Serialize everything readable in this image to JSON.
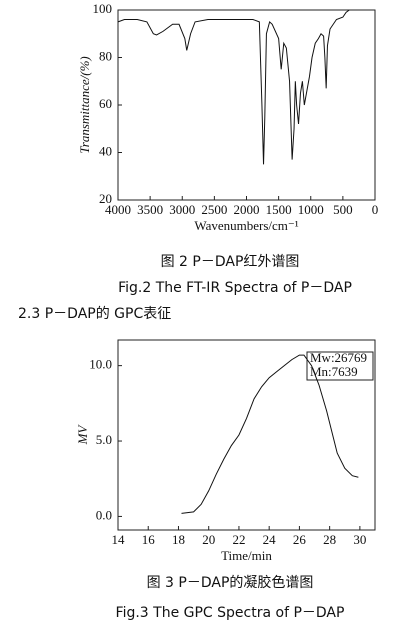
{
  "chart_data": [
    {
      "type": "line",
      "y_label": "Transmittance/(%)",
      "x_label": "Wavenumbers/cm⁻¹",
      "color": "#111111",
      "x": [
        4000,
        3900,
        3700,
        3550,
        3450,
        3400,
        3300,
        3150,
        3050,
        2960,
        2930,
        2870,
        2800,
        2600,
        2200,
        1900,
        1800,
        1760,
        1735,
        1715,
        1690,
        1640,
        1600,
        1500,
        1460,
        1420,
        1380,
        1330,
        1290,
        1260,
        1240,
        1220,
        1190,
        1160,
        1130,
        1100,
        1060,
        1020,
        980,
        930,
        880,
        840,
        800,
        780,
        760,
        740,
        700,
        600,
        500,
        450,
        400
      ],
      "values": [
        95,
        96,
        96,
        95,
        90,
        89.5,
        91,
        94,
        94,
        88,
        83,
        90,
        95,
        96,
        96,
        96,
        95,
        60,
        35,
        55,
        90,
        95,
        94,
        88,
        75,
        86,
        84,
        70,
        37,
        50,
        70,
        60,
        52,
        65,
        70,
        60,
        66,
        72,
        80,
        86,
        88,
        90,
        89,
        80,
        67,
        85,
        92,
        96,
        97,
        99,
        100
      ],
      "xlim": [
        4000,
        0
      ],
      "ylim": [
        20,
        100
      ],
      "xticks": [
        4000,
        3500,
        3000,
        2500,
        2000,
        1500,
        1000,
        500,
        0
      ],
      "yticks": [
        20,
        40,
        60,
        80,
        100
      ]
    },
    {
      "type": "line",
      "y_label": "MV",
      "x_label": "Time/min",
      "color": "#111111",
      "annotations": [
        "Mw:26769",
        "Mn:7639"
      ],
      "x": [
        18.2,
        19,
        19.5,
        20,
        20.5,
        21,
        21.5,
        22,
        22.5,
        23,
        23.5,
        24,
        24.5,
        25,
        25.5,
        26,
        26.3,
        26.8,
        27.3,
        27.8,
        28.2,
        28.5,
        29,
        29.5,
        29.9
      ],
      "values": [
        0.2,
        0.3,
        0.8,
        1.7,
        2.8,
        3.8,
        4.7,
        5.4,
        6.5,
        7.8,
        8.6,
        9.2,
        9.6,
        10.0,
        10.4,
        10.7,
        10.7,
        10.0,
        8.7,
        7.0,
        5.4,
        4.2,
        3.2,
        2.7,
        2.6
      ],
      "xlim": [
        14,
        31
      ],
      "ylim": [
        -0.9,
        11.7
      ],
      "xticks": [
        14,
        16,
        18,
        20,
        22,
        24,
        26,
        28,
        30
      ],
      "yticks": [
        {
          "value": 0,
          "label": "0.0"
        },
        {
          "value": 5,
          "label": "5.0"
        },
        {
          "value": 10,
          "label": "10.0"
        }
      ]
    }
  ],
  "figure_2_caption": {
    "zh": "图 2  P－DAP红外谱图",
    "en": "Fig.2  The FT-IR Spectra of P－DAP"
  },
  "section_heading": "2.3  P－DAP的 GPC表征",
  "figure_3_caption": {
    "zh": "图 3  P－DAP的凝胶色谱图",
    "en": "Fig.3  The GPC Spectra of P－DAP"
  }
}
